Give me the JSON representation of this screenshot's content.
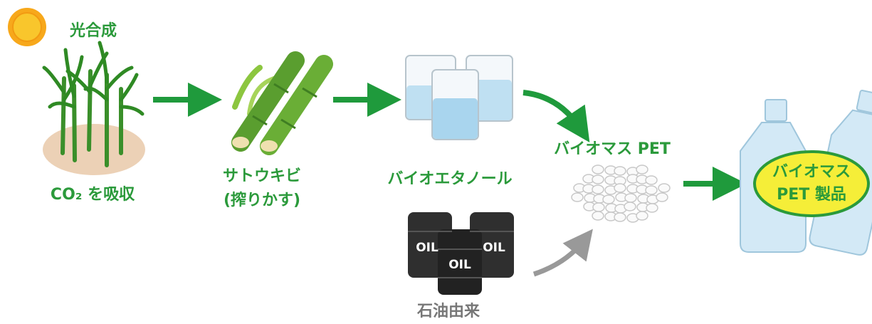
{
  "photosynthesis": "光合成",
  "absorption": "CO₂ を吸収",
  "sugarcane": {
    "name": "サトウキビ",
    "note": "(搾りかす)"
  },
  "bioethanol": "バイオエタノール",
  "biomass_pet": "バイオマス PET",
  "petroleum": {
    "label": "石油由来",
    "barrels": [
      "OIL",
      "OIL",
      "OIL"
    ]
  },
  "product": {
    "line1": "バイオマス",
    "line2": "PET 製品"
  }
}
